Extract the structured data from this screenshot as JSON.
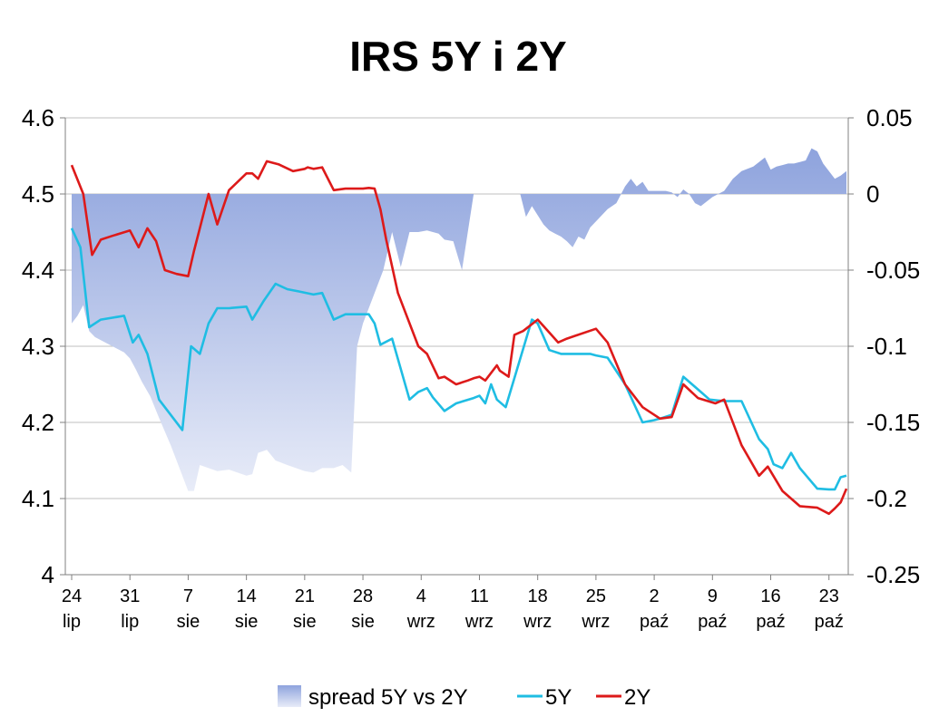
{
  "chart_data": {
    "type": "line",
    "title": "IRS 5Y i 2Y",
    "x_tick_labels": [
      [
        "24",
        "lip"
      ],
      [
        "31",
        "lip"
      ],
      [
        "7",
        "sie"
      ],
      [
        "14",
        "sie"
      ],
      [
        "21",
        "sie"
      ],
      [
        "28",
        "sie"
      ],
      [
        "4",
        "wrz"
      ],
      [
        "11",
        "wrz"
      ],
      [
        "18",
        "wrz"
      ],
      [
        "25",
        "wrz"
      ],
      [
        "2",
        "paź"
      ],
      [
        "9",
        "paź"
      ],
      [
        "16",
        "paź"
      ],
      [
        "23",
        "paź"
      ]
    ],
    "x_range": [
      0,
      13.3
    ],
    "y_left": {
      "min": 4,
      "max": 4.6,
      "step": 0.1,
      "ticks": [
        "4",
        "4.1",
        "4.2",
        "4.3",
        "4.4",
        "4.5",
        "4.6"
      ]
    },
    "y_right": {
      "min": -0.25,
      "max": 0.05,
      "step": 0.05,
      "ticks": [
        "-0.25",
        "-0.2",
        "-0.15",
        "-0.1",
        "-0.05",
        "0",
        "0.05"
      ]
    },
    "grid": true,
    "legend_position": "bottom",
    "series": [
      {
        "name": "spread 5Y vs 2Y",
        "kind": "area",
        "axis": "right",
        "color": "#8ea3dd",
        "x": [
          0,
          0.1,
          0.2,
          0.3,
          0.4,
          0.5,
          0.7,
          0.9,
          1.0,
          1.1,
          1.2,
          1.35,
          1.5,
          1.7,
          2.0,
          2.1,
          2.2,
          2.35,
          2.5,
          2.7,
          3.0,
          3.1,
          3.2,
          3.35,
          3.5,
          3.7,
          3.85,
          4.0,
          4.15,
          4.3,
          4.5,
          4.65,
          4.8,
          4.9,
          5.0,
          5.1,
          5.2,
          5.35,
          5.5,
          5.65,
          5.8,
          5.95,
          6.1,
          6.2,
          6.3,
          6.4,
          6.55,
          6.7,
          6.9,
          7.0,
          7.1,
          7.2,
          7.35,
          7.5,
          7.6,
          7.7,
          7.8,
          7.9,
          8.0,
          8.1,
          8.2,
          8.3,
          8.4,
          8.5,
          8.6,
          8.7,
          8.8,
          8.9,
          9.0,
          9.1,
          9.2,
          9.35,
          9.5,
          9.6,
          9.7,
          9.8,
          9.9,
          10.0,
          10.1,
          10.2,
          10.3,
          10.4,
          10.5,
          10.6,
          10.7,
          10.8,
          10.9,
          11.0,
          11.1,
          11.2,
          11.35,
          11.5,
          11.7,
          11.9,
          12.0,
          12.1,
          12.2,
          12.3,
          12.4,
          12.5,
          12.6,
          12.7,
          12.8,
          12.9,
          13.0,
          13.1,
          13.2,
          13.3
        ],
        "values": [
          -0.085,
          -0.08,
          -0.073,
          -0.09,
          -0.094,
          -0.096,
          -0.1,
          -0.104,
          -0.108,
          -0.115,
          -0.123,
          -0.133,
          -0.147,
          -0.165,
          -0.195,
          -0.195,
          -0.178,
          -0.18,
          -0.182,
          -0.181,
          -0.185,
          -0.184,
          -0.17,
          -0.168,
          -0.175,
          -0.178,
          -0.18,
          -0.182,
          -0.183,
          -0.18,
          -0.18,
          -0.178,
          -0.183,
          -0.1,
          -0.085,
          -0.075,
          -0.065,
          -0.05,
          -0.025,
          -0.048,
          -0.025,
          -0.025,
          -0.024,
          -0.025,
          -0.026,
          -0.03,
          -0.031,
          -0.05,
          0,
          0,
          0,
          0,
          0,
          0,
          0,
          0,
          -0.015,
          -0.008,
          -0.014,
          -0.02,
          -0.024,
          -0.026,
          -0.028,
          -0.031,
          -0.035,
          -0.028,
          -0.03,
          -0.022,
          -0.018,
          -0.014,
          -0.01,
          -0.006,
          0.005,
          0.01,
          0.005,
          0.008,
          0.002,
          0.002,
          0.002,
          0.002,
          0.001,
          -0.002,
          0.003,
          0,
          -0.006,
          -0.008,
          -0.005,
          -0.002,
          0,
          0.002,
          0.01,
          0.015,
          0.018,
          0.024,
          0.016,
          0.018,
          0.019,
          0.02,
          0.02,
          0.021,
          0.022,
          0.03,
          0.028,
          0.02,
          0.015,
          0.01,
          0.012,
          0.015
        ]
      },
      {
        "name": "5Y",
        "kind": "line",
        "axis": "left",
        "color": "#1fbde3",
        "x": [
          0,
          0.15,
          0.3,
          0.5,
          0.9,
          1.05,
          1.15,
          1.3,
          1.5,
          1.9,
          2.05,
          2.2,
          2.35,
          2.5,
          2.7,
          3.0,
          3.1,
          3.3,
          3.5,
          3.7,
          3.9,
          4.15,
          4.3,
          4.5,
          4.7,
          5.0,
          5.1,
          5.2,
          5.3,
          5.5,
          5.8,
          5.95,
          6.1,
          6.2,
          6.4,
          6.6,
          6.9,
          7.0,
          7.1,
          7.2,
          7.3,
          7.45,
          7.9,
          8.0,
          8.2,
          8.4,
          8.9,
          9.0,
          9.2,
          9.5,
          9.8,
          10.0,
          10.1,
          10.3,
          10.5,
          10.8,
          10.95,
          11.2,
          11.5,
          11.8,
          11.95,
          12.05,
          12.2,
          12.35,
          12.5,
          12.8,
          13.0,
          13.1,
          13.2,
          13.3
        ],
        "values": [
          4.455,
          4.43,
          4.325,
          4.335,
          4.34,
          4.305,
          4.315,
          4.29,
          4.23,
          4.19,
          4.3,
          4.29,
          4.33,
          4.35,
          4.35,
          4.352,
          4.335,
          4.36,
          4.382,
          4.375,
          4.372,
          4.368,
          4.37,
          4.335,
          4.342,
          4.342,
          4.342,
          4.33,
          4.302,
          4.31,
          4.23,
          4.24,
          4.245,
          4.233,
          4.215,
          4.225,
          4.232,
          4.235,
          4.225,
          4.25,
          4.23,
          4.22,
          4.335,
          4.33,
          4.295,
          4.29,
          4.29,
          4.288,
          4.285,
          4.25,
          4.2,
          4.203,
          4.205,
          4.21,
          4.26,
          4.24,
          4.23,
          4.228,
          4.228,
          4.178,
          4.165,
          4.145,
          4.14,
          4.16,
          4.14,
          4.113,
          4.112,
          4.112,
          4.128,
          4.13
        ]
      },
      {
        "name": "2Y",
        "kind": "line",
        "axis": "left",
        "color": "#dd1a1a",
        "x": [
          0,
          0.2,
          0.35,
          0.5,
          0.7,
          1.0,
          1.15,
          1.3,
          1.45,
          1.6,
          1.8,
          2.0,
          2.1,
          2.25,
          2.35,
          2.5,
          2.7,
          3.0,
          3.1,
          3.2,
          3.35,
          3.55,
          3.8,
          4.0,
          4.05,
          4.15,
          4.3,
          4.5,
          4.7,
          5.0,
          5.1,
          5.2,
          5.3,
          5.4,
          5.6,
          5.95,
          6.1,
          6.3,
          6.4,
          6.6,
          6.8,
          6.9,
          7.0,
          7.1,
          7.3,
          7.35,
          7.5,
          7.6,
          7.75,
          8.0,
          8.2,
          8.35,
          8.5,
          9.0,
          9.2,
          9.5,
          9.8,
          10.1,
          10.3,
          10.5,
          10.75,
          11.05,
          11.2,
          11.5,
          11.8,
          11.95,
          12.2,
          12.35,
          12.5,
          12.8,
          13.0,
          13.1,
          13.2,
          13.3
        ],
        "values": [
          4.538,
          4.5,
          4.42,
          4.44,
          4.445,
          4.452,
          4.43,
          4.455,
          4.438,
          4.4,
          4.395,
          4.392,
          4.425,
          4.47,
          4.5,
          4.46,
          4.505,
          4.527,
          4.527,
          4.52,
          4.543,
          4.539,
          4.53,
          4.533,
          4.535,
          4.533,
          4.535,
          4.505,
          4.507,
          4.507,
          4.508,
          4.507,
          4.48,
          4.44,
          4.37,
          4.3,
          4.29,
          4.258,
          4.26,
          4.25,
          4.255,
          4.258,
          4.26,
          4.255,
          4.275,
          4.268,
          4.26,
          4.315,
          4.32,
          4.335,
          4.318,
          4.305,
          4.31,
          4.323,
          4.305,
          4.25,
          4.22,
          4.205,
          4.207,
          4.25,
          4.232,
          4.225,
          4.23,
          4.17,
          4.13,
          4.142,
          4.11,
          4.1,
          4.09,
          4.088,
          4.08,
          4.087,
          4.095,
          4.113
        ]
      }
    ]
  }
}
